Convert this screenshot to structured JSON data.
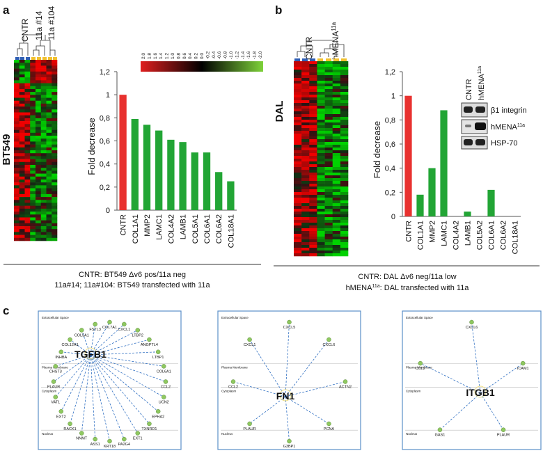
{
  "panel_labels": [
    "a",
    "b",
    "c"
  ],
  "heatmap_a": {
    "groups": [
      "CNTR",
      "11a #14",
      "11a #104"
    ],
    "cell_line": "BT549"
  },
  "color_scale": {
    "labels": [
      "2.0",
      "1.8",
      "1.6",
      "1.4",
      "1.2",
      "1.0",
      "0.8",
      "0.6",
      "0.4",
      "0.2",
      "0.0",
      "-0.2",
      "-0.4",
      "-0.6",
      "-0.8",
      "-1.0",
      "-1.2",
      "-1.4",
      "-1.6",
      "-1.8",
      "-2.0"
    ]
  },
  "chart_data": [
    {
      "type": "bar",
      "y_label": "Fold decrease",
      "categories": [
        "CNTR",
        "COL1A1",
        "MMP2",
        "LAMC1",
        "COL4A2",
        "LAMB1",
        "COL5A1",
        "COL6A1",
        "COL6A2",
        "COL18A1"
      ],
      "values": [
        1,
        0.79,
        0.74,
        0.69,
        0.61,
        0.59,
        0.5,
        0.5,
        0.33,
        0.25
      ],
      "colors": [
        "#e8312f",
        "#22a535",
        "#22a535",
        "#22a535",
        "#22a535",
        "#22a535",
        "#22a535",
        "#22a535",
        "#22a535",
        "#22a535"
      ],
      "ylim": [
        0,
        1.2
      ],
      "yticks": [
        0,
        {
          "value": 0.2,
          "label": "0,2"
        },
        {
          "value": 0.4,
          "label": "0,4"
        },
        {
          "value": 0.6,
          "label": "0,6"
        },
        {
          "value": 0.8,
          "label": "0,8"
        },
        1,
        {
          "value": 1.2,
          "label": "1,2"
        }
      ]
    },
    {
      "type": "bar",
      "y_label": "Fold decrease",
      "categories": [
        "CNTR",
        "COL1A1",
        "MMP2",
        "LAMC1",
        "COL4A2",
        "LAMB1",
        "COL5A2",
        "COL6A1",
        "COL6A2",
        "COL18A1"
      ],
      "values": [
        1,
        0.18,
        0.4,
        0.88,
        0,
        0.04,
        0,
        0.22,
        0,
        0
      ],
      "colors": [
        "#e8312f",
        "#22a535",
        "#22a535",
        "#22a535",
        "#22a535",
        "#22a535",
        "#22a535",
        "#22a535",
        "#22a535",
        "#22a535"
      ],
      "ylim": [
        0,
        1.2
      ],
      "yticks": [
        0,
        {
          "value": 0.2,
          "label": "0,2"
        },
        {
          "value": 0.4,
          "label": "0,4"
        },
        {
          "value": 0.6,
          "label": "0,6"
        },
        {
          "value": 0.8,
          "label": "0,8"
        },
        1,
        {
          "value": 1.2,
          "label": "1,2"
        }
      ]
    }
  ],
  "heatmap_b": {
    "group_1": "CNTR",
    "group_2": {
      "text": "hMENA",
      "sup": "11a"
    },
    "cell_line": "DAL"
  },
  "blot": {
    "lanes": [
      "CNTR",
      {
        "text": "hMENA",
        "sup": "11a"
      }
    ],
    "bands": [
      "β1 integrin",
      {
        "text": "hMENA",
        "sup": "11a"
      },
      "HSP-70"
    ]
  },
  "captions": {
    "a": [
      "CNTR: BT549 Δv6 pos/11a neg",
      "11a#14; 11a#104: BT549 transfected with 11a"
    ],
    "b": {
      "line1": "CNTR: DAL Δv6 neg/11a low",
      "line2": {
        "text": "hMENA",
        "sup": "11a",
        "rest": ": DAL transfected with 11a"
      }
    }
  },
  "networks": [
    {
      "hub": "TGFB1",
      "compartments": [
        "Extracellular Space",
        "Plasma Membrane",
        "Cytoplasm",
        "Nucleus"
      ],
      "nodes": [
        "COL7A1",
        "CXCL1",
        "LTBP2",
        "ANGPTL4",
        "LTBP1",
        "COL6A1",
        "CCL2",
        "UCN2",
        "EPHA2",
        "TXNRD1",
        "EXT1",
        "PA2G4",
        "KRT18",
        "ASS1",
        "NNMT",
        "RACK1",
        "EXT2",
        "VAT1",
        "PLAUR",
        "CHST3",
        "INHBA",
        "COL12A1",
        "COL5A1",
        "FSTL3"
      ]
    },
    {
      "hub": "FN1",
      "compartments": [
        "Extracellular Space",
        "Plasma Membrane",
        "Cytoplasm",
        "Nucleus"
      ],
      "nodes": [
        "CXCL5",
        "CXCL6",
        "ACTN2",
        "PCNA",
        "G3BP1",
        "PLAUR",
        "CCL2",
        "CXCL1"
      ]
    },
    {
      "hub": "ITGB1",
      "compartments": [
        "Extracellular Space",
        "Plasma Membrane",
        "Cytoplasm",
        "Nucleus"
      ],
      "nodes": [
        "CXCL6",
        "ICAM1",
        "PLAUR",
        "GAS1",
        "CCL2"
      ]
    }
  ]
}
